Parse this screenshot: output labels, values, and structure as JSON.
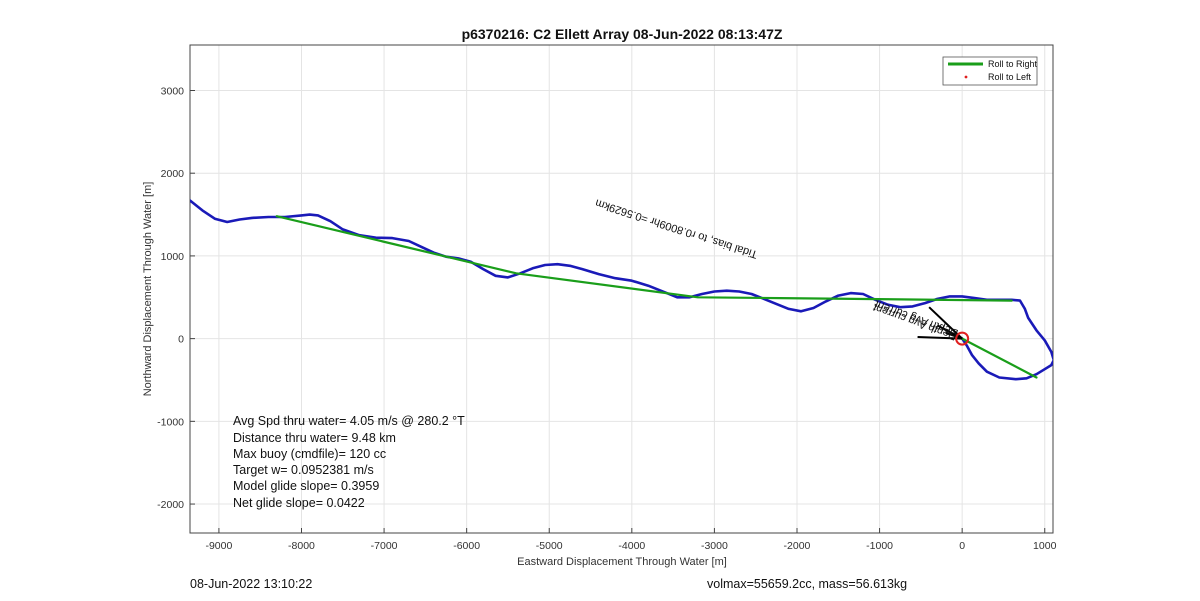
{
  "chart_data": {
    "type": "line",
    "title": "p6370216: C2 Ellett Array 08-Jun-2022 08:13:47Z",
    "xlabel": "Eastward Displacement Through Water [m]",
    "ylabel": "Northward Displacement Through Water [m]",
    "xlim": [
      -9350,
      1100
    ],
    "ylim": [
      -2350,
      3550
    ],
    "xticks": [
      -9000,
      -8000,
      -7000,
      -6000,
      -5000,
      -4000,
      -3000,
      -2000,
      -1000,
      0,
      1000
    ],
    "yticks": [
      -2000,
      -1000,
      0,
      1000,
      2000,
      3000
    ],
    "grid": true,
    "legend": {
      "placement": "top-right",
      "entries": [
        {
          "label": "Roll to Right",
          "color": "#1a9e1a",
          "style": "line"
        },
        {
          "label": "Roll to Left",
          "color": "#e02020",
          "style": "dot"
        }
      ]
    },
    "series": [
      {
        "color": "#1a1ab8",
        "x": [
          -9350,
          -9200,
          -9050,
          -8900,
          -8750,
          -8600,
          -8400,
          -8200,
          -8000,
          -7900,
          -7800,
          -7650,
          -7500,
          -7300,
          -7100,
          -6900,
          -6700,
          -6550,
          -6400,
          -6250,
          -6100,
          -5950,
          -5800,
          -5650,
          -5500,
          -5350,
          -5200,
          -5050,
          -4900,
          -4750,
          -4600,
          -4400,
          -4200,
          -4000,
          -3800,
          -3600,
          -3450,
          -3300,
          -3150,
          -3000,
          -2850,
          -2700,
          -2550,
          -2400,
          -2250,
          -2100,
          -1950,
          -1800,
          -1650,
          -1500,
          -1350,
          -1200,
          -1050,
          -900,
          -750,
          -600,
          -450,
          -300,
          -150,
          0,
          150,
          300,
          450,
          600,
          700,
          760,
          800,
          900,
          1000,
          1080,
          1110,
          1080,
          1000,
          900,
          780,
          650,
          450,
          300,
          200,
          120,
          60,
          0
        ],
        "y": [
          1670,
          1550,
          1450,
          1410,
          1440,
          1460,
          1470,
          1470,
          1490,
          1500,
          1490,
          1420,
          1320,
          1250,
          1220,
          1215,
          1180,
          1110,
          1040,
          990,
          970,
          930,
          840,
          760,
          740,
          790,
          850,
          890,
          900,
          880,
          840,
          780,
          730,
          700,
          640,
          560,
          500,
          500,
          540,
          570,
          580,
          570,
          540,
          480,
          420,
          360,
          330,
          370,
          450,
          520,
          550,
          540,
          470,
          410,
          380,
          390,
          430,
          480,
          510,
          510,
          490,
          470,
          470,
          470,
          460,
          360,
          250,
          100,
          -20,
          -160,
          -260,
          -320,
          -370,
          -430,
          -480,
          -490,
          -470,
          -400,
          -300,
          -200,
          -90,
          0
        ]
      },
      {
        "name": "Roll to Right",
        "color": "#1a9e1a",
        "x": [
          -8300,
          -5400,
          -3200,
          -2200,
          600
        ],
        "y": [
          1480,
          790,
          500,
          490,
          460
        ]
      },
      {
        "color": "#1a9e1a",
        "x": [
          0,
          900
        ],
        "y": [
          0,
          -470
        ]
      }
    ],
    "markers": [
      {
        "type": "circle",
        "x": 0,
        "y": 0,
        "color": "#e02020"
      }
    ],
    "arrows": [
      {
        "x1": 0,
        "y1": 0,
        "x2": -540,
        "y2": 20,
        "color": "#000000"
      },
      {
        "x1": 0,
        "y1": 0,
        "x2": -400,
        "y2": 380,
        "color": "#000000"
      },
      {
        "x1": 0,
        "y1": 0,
        "x2": -300,
        "y2": 160,
        "color": "#000000"
      },
      {
        "x1": 0,
        "y1": 0,
        "x2": -200,
        "y2": 70,
        "color": "#000000"
      }
    ],
    "rotated_annotations": [
      {
        "text": "Tidal bias, to r0.8009hr =0.5629km",
        "x": -2470,
        "y": 1050
      },
      {
        "text": "Depth Avg current",
        "x": -40,
        "y": 100
      },
      {
        "text": "Depth Avg current",
        "x": -60,
        "y": 60
      }
    ],
    "stats_text": [
      "Avg Spd thru water=  4.05 m/s @ 280.2 °T",
      "Distance thru water=  9.48 km",
      "Max buoy (cmdfile)= 120 cc",
      "Target w= 0.0952381 m/s",
      "Model glide slope= 0.3959",
      "Net glide slope= 0.0422"
    ]
  },
  "footer": {
    "left": "08-Jun-2022 13:10:22",
    "right": "volmax=55659.2cc, mass=56.613kg"
  }
}
